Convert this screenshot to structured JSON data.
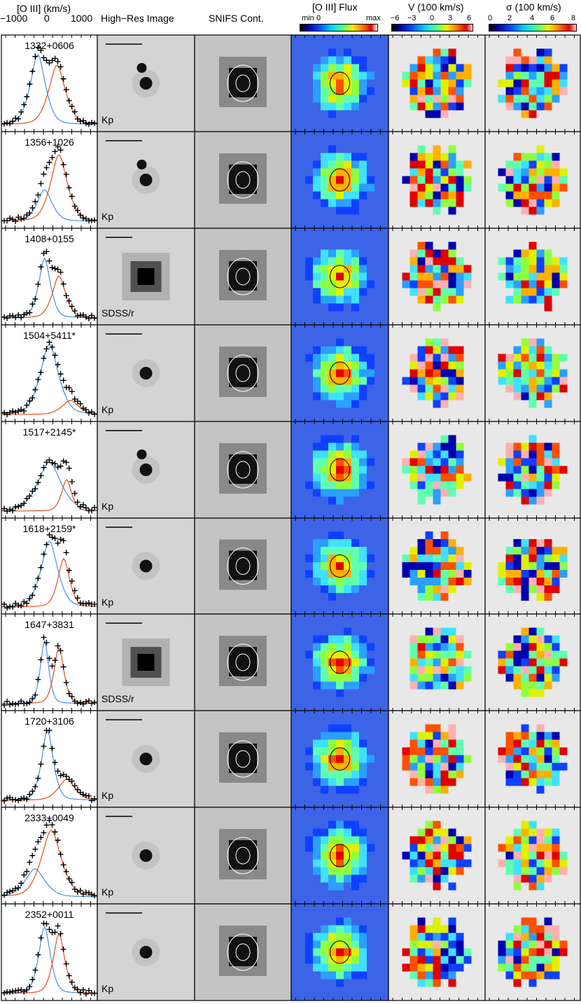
{
  "headers": {
    "spectrum": "[O III] (km/s)",
    "spectrum_ticks": [
      "−1000",
      "0",
      "1000"
    ],
    "hires": "High−Res Image",
    "snifs": "SNIFS Cont.",
    "flux": "[O III] Flux",
    "flux_min": "min",
    "flux_zero": "0",
    "flux_max": "max",
    "vel": "V (100 km/s)",
    "vel_ticks": [
      "−6",
      "−3",
      "0",
      "3",
      "6"
    ],
    "sigma": "σ (100 km/s)",
    "sigma_ticks": [
      "0",
      "2",
      "4",
      "6",
      "8"
    ]
  },
  "colors": {
    "blue_component": "#4a8fe0",
    "red_component": "#e0501e",
    "flux_background": "#3d64e6",
    "map_background": "#e8e8e8"
  },
  "rows": [
    {
      "id": "1332+0606",
      "filter": "Kp",
      "peaks": [
        1.0,
        0.85
      ],
      "widths": [
        0.09,
        0.1
      ],
      "centers": [
        0.38,
        0.58
      ],
      "nuclei": 2
    },
    {
      "id": "1356+1026",
      "filter": "Kp",
      "peaks": [
        0.45,
        0.95
      ],
      "widths": [
        0.09,
        0.1
      ],
      "centers": [
        0.45,
        0.6
      ],
      "nuclei": 2
    },
    {
      "id": "1408+0155",
      "filter": "SDSS/r",
      "peaks": [
        0.85,
        0.6
      ],
      "widths": [
        0.07,
        0.08
      ],
      "centers": [
        0.45,
        0.6
      ],
      "nuclei": 1
    },
    {
      "id": "1504+5411*",
      "filter": "Kp",
      "peaks": [
        1.0,
        0.2
      ],
      "widths": [
        0.11,
        0.1
      ],
      "centers": [
        0.5,
        0.72
      ],
      "nuclei": 1
    },
    {
      "id": "1517+2145*",
      "filter": "Kp",
      "peaks": [
        0.7,
        0.45
      ],
      "widths": [
        0.14,
        0.06
      ],
      "centers": [
        0.5,
        0.68
      ],
      "nuclei": 2
    },
    {
      "id": "1618+2159*",
      "filter": "Kp",
      "peaks": [
        0.95,
        0.7
      ],
      "widths": [
        0.1,
        0.07
      ],
      "centers": [
        0.5,
        0.65
      ],
      "nuclei": 1
    },
    {
      "id": "1647+3831",
      "filter": "SDSS/r",
      "peaks": [
        0.9,
        0.8
      ],
      "widths": [
        0.05,
        0.06
      ],
      "centers": [
        0.45,
        0.6
      ],
      "nuclei": 1
    },
    {
      "id": "1720+3106",
      "filter": "Kp",
      "peaks": [
        1.0,
        0.3
      ],
      "widths": [
        0.07,
        0.1
      ],
      "centers": [
        0.48,
        0.68
      ],
      "nuclei": 1
    },
    {
      "id": "2333+0049",
      "filter": "Kp",
      "peaks": [
        0.4,
        0.95
      ],
      "widths": [
        0.12,
        0.12
      ],
      "centers": [
        0.35,
        0.52
      ],
      "nuclei": 1
    },
    {
      "id": "2352+0011",
      "filter": "Kp",
      "peaks": [
        0.95,
        0.85
      ],
      "widths": [
        0.07,
        0.07
      ],
      "centers": [
        0.45,
        0.6
      ],
      "nuclei": 1
    }
  ]
}
